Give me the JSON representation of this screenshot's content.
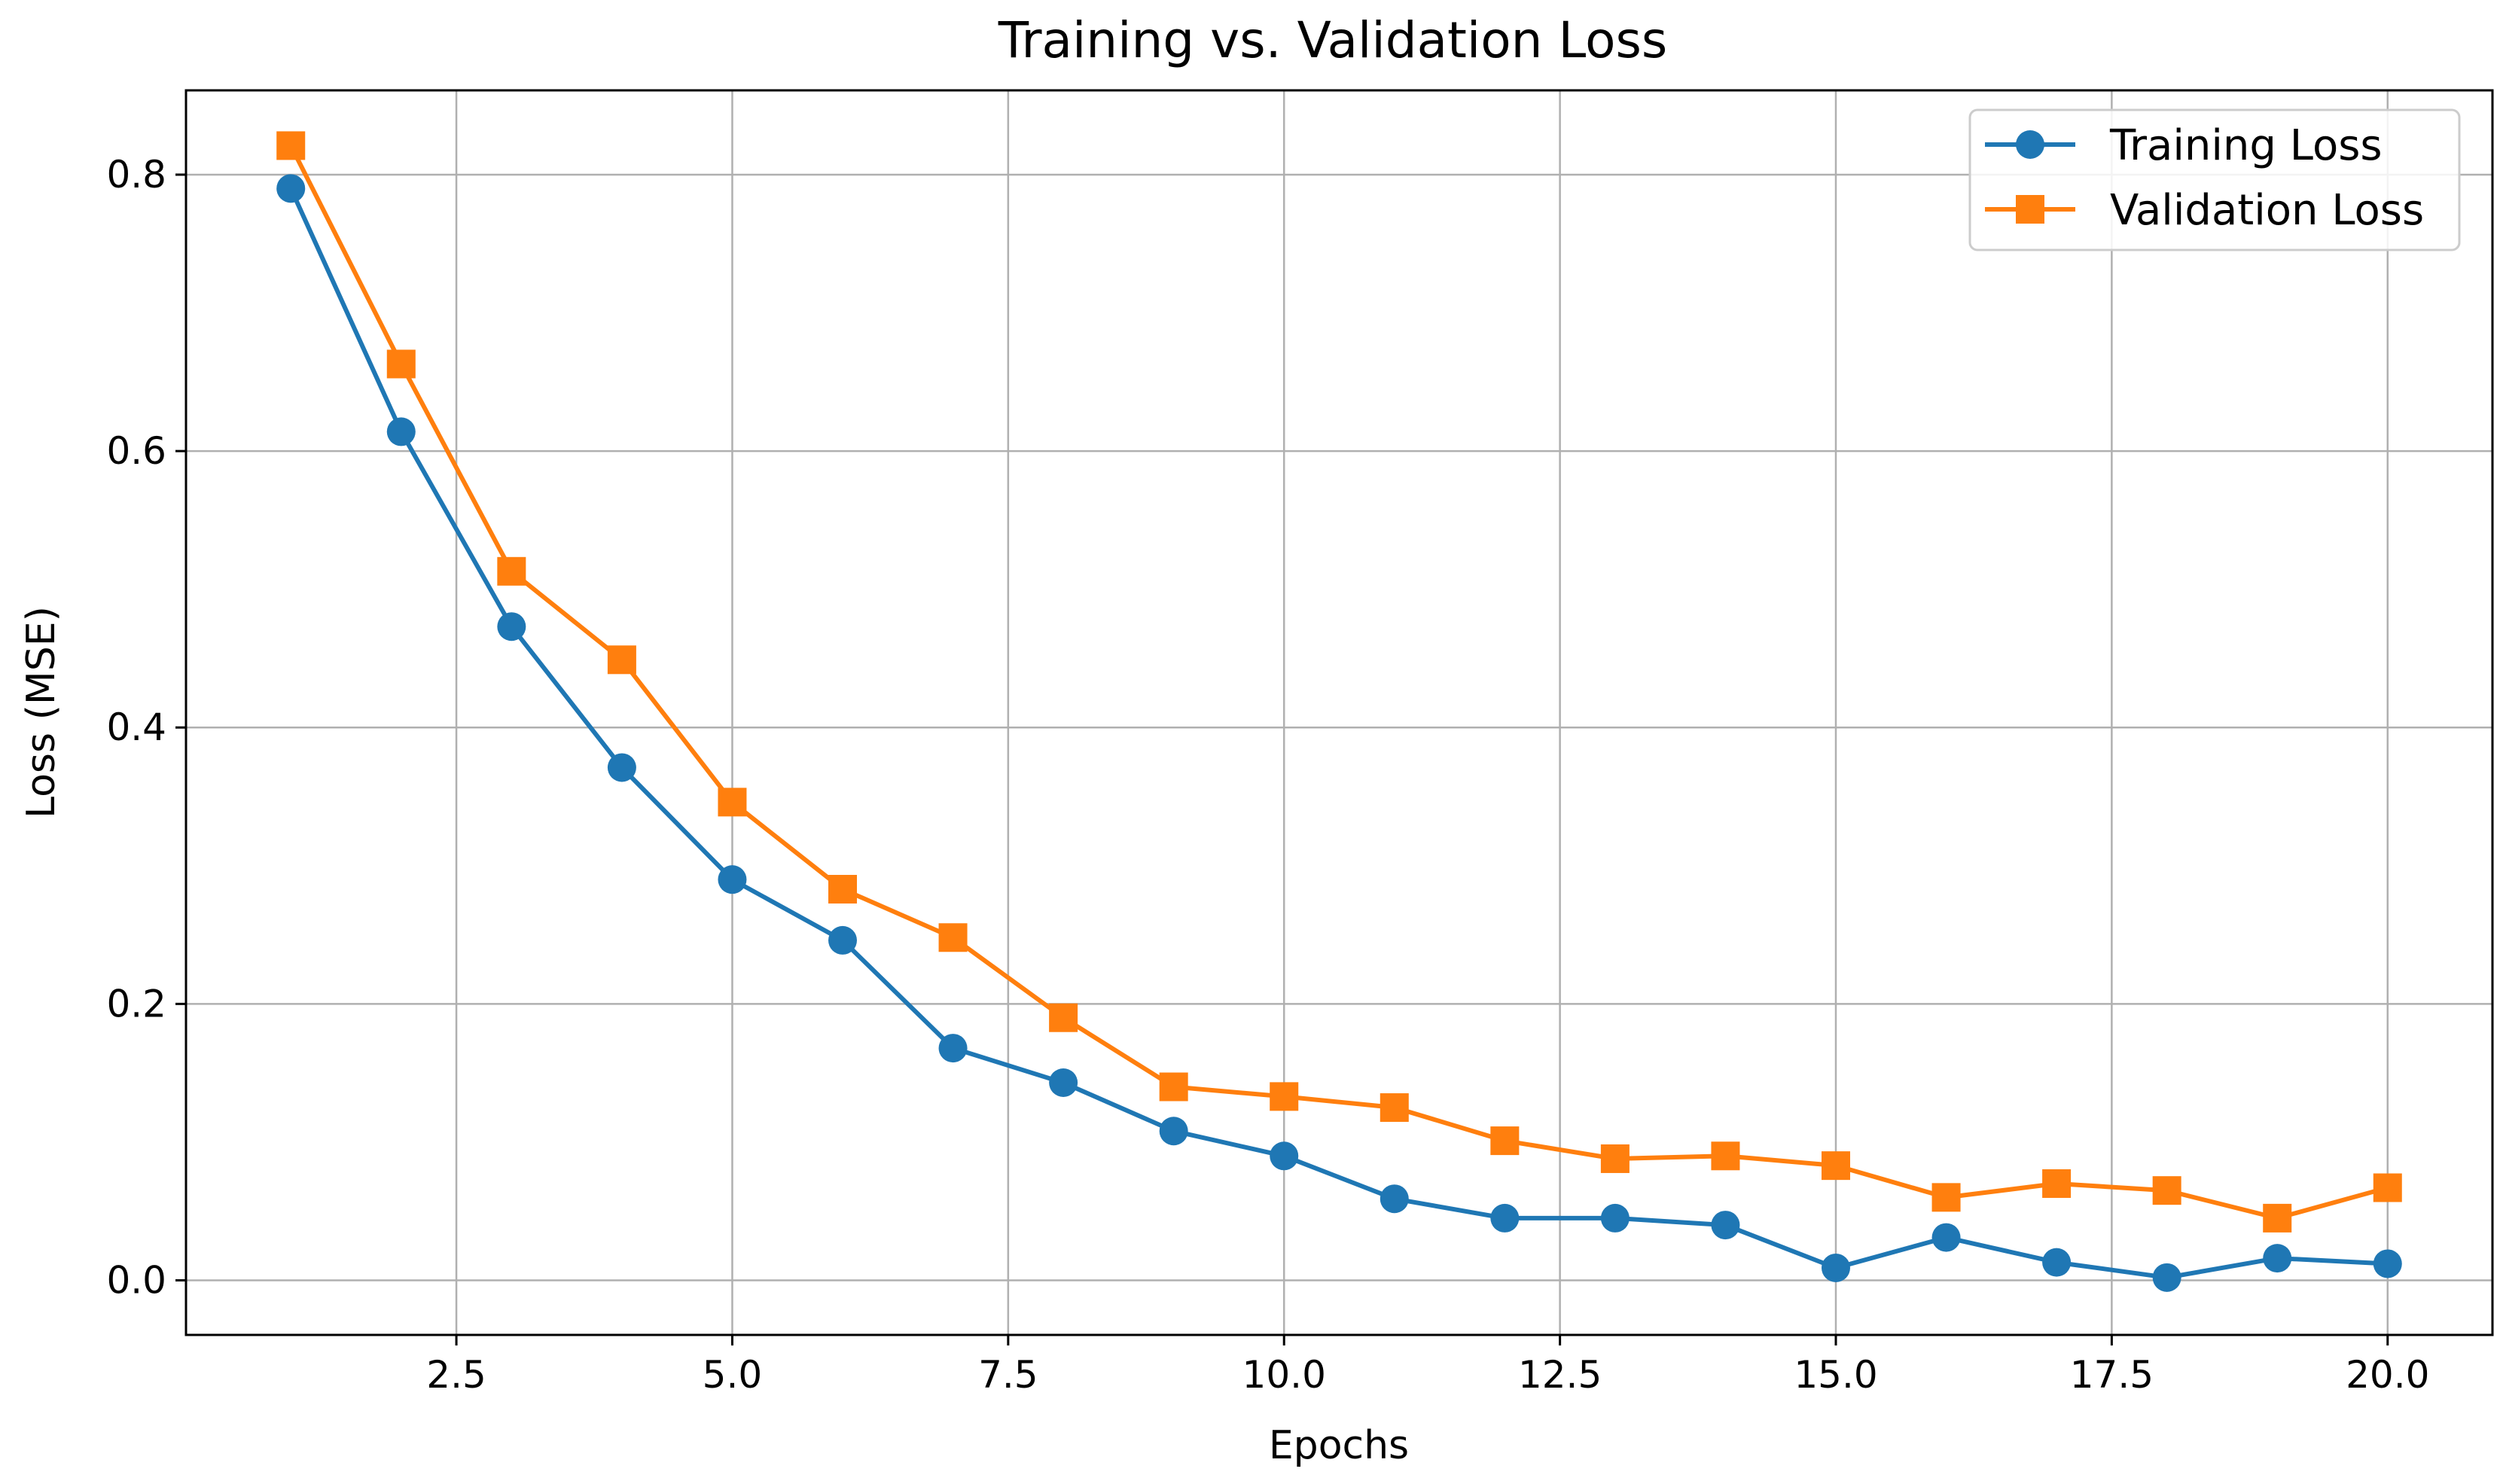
{
  "chart_data": {
    "type": "line",
    "title": "Training vs. Validation Loss",
    "xlabel": "Epochs",
    "ylabel": "Loss (MSE)",
    "xlim": [
      0.05,
      20.95
    ],
    "ylim": [
      -0.0395,
      0.861
    ],
    "grid": true,
    "legend_position": "top-right",
    "x_ticks": [
      2.5,
      5.0,
      7.5,
      10.0,
      12.5,
      15.0,
      17.5,
      20.0
    ],
    "x_tick_labels": [
      "2.5",
      "5.0",
      "7.5",
      "10.0",
      "12.5",
      "15.0",
      "17.5",
      "20.0"
    ],
    "y_ticks": [
      0.0,
      0.2,
      0.4,
      0.6,
      0.8
    ],
    "y_tick_labels": [
      "0.0",
      "0.2",
      "0.4",
      "0.6",
      "0.8"
    ],
    "x": [
      1,
      2,
      3,
      4,
      5,
      6,
      7,
      8,
      9,
      10,
      11,
      12,
      13,
      14,
      15,
      16,
      17,
      18,
      19,
      20
    ],
    "series": [
      {
        "name": "Training Loss",
        "color": "#1f77b4",
        "marker": "circle",
        "values": [
          0.79,
          0.614,
          0.473,
          0.371,
          0.29,
          0.246,
          0.168,
          0.143,
          0.108,
          0.09,
          0.059,
          0.045,
          0.045,
          0.04,
          0.009,
          0.031,
          0.013,
          0.002,
          0.016,
          0.012
        ]
      },
      {
        "name": "Validation Loss",
        "color": "#ff7f0e",
        "marker": "square",
        "values": [
          0.821,
          0.663,
          0.513,
          0.449,
          0.346,
          0.283,
          0.248,
          0.19,
          0.14,
          0.133,
          0.125,
          0.101,
          0.088,
          0.09,
          0.083,
          0.06,
          0.07,
          0.065,
          0.045,
          0.067
        ]
      }
    ]
  }
}
